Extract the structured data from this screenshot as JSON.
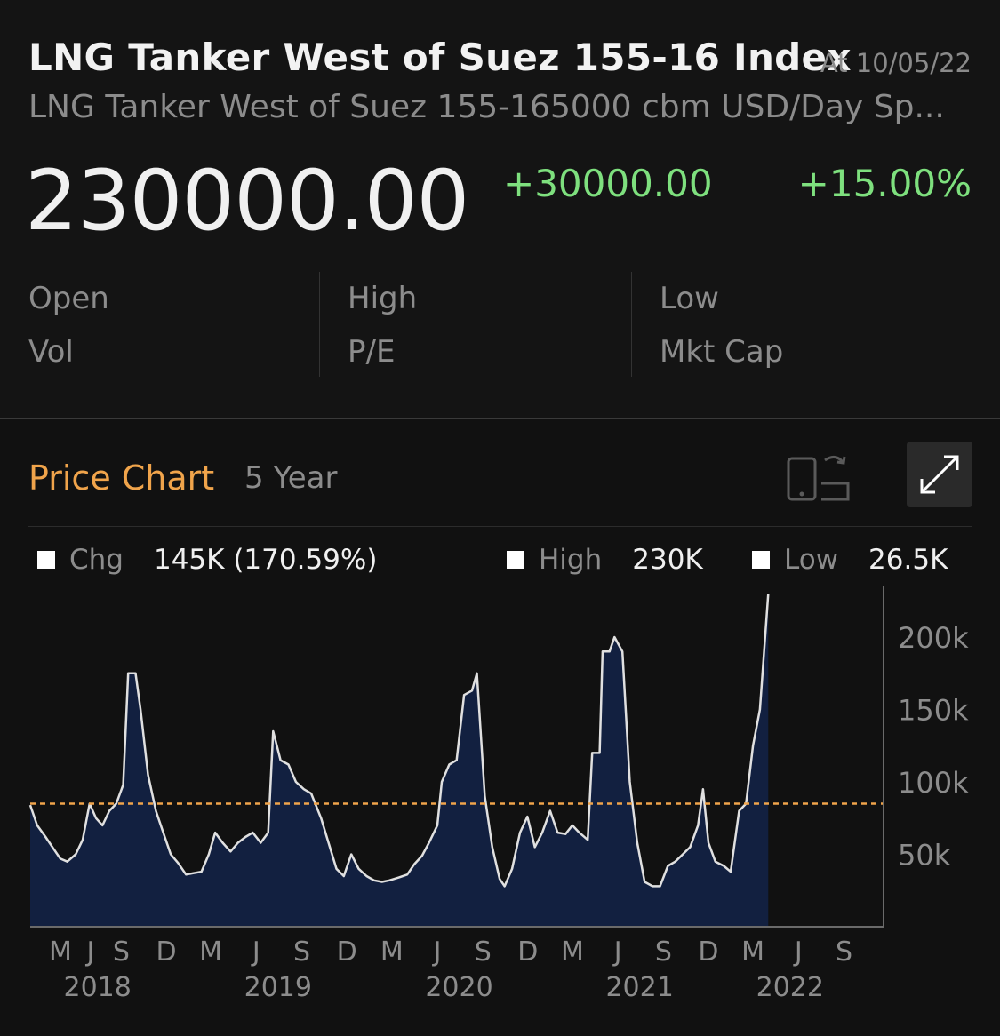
{
  "header": {
    "title": "LNG Tanker West of Suez 155-16 Index",
    "as_of": "At 10/05/22",
    "subtitle": "LNG Tanker West of Suez 155-165000 cbm USD/Day Sp...",
    "price": "230000.00",
    "change": "+30000.00",
    "change_pct": "+15.00%",
    "change_color": "#7ee07e"
  },
  "stats": {
    "open": "Open",
    "high": "High",
    "low": "Low",
    "vol": "Vol",
    "pe": "P/E",
    "mkt_cap": "Mkt Cap"
  },
  "price_chart": {
    "title": "Price Chart",
    "range": "5 Year",
    "title_color": "#f0a44b",
    "rotate_icon": "rotate-device-icon",
    "expand_icon": "expand-icon",
    "legend": {
      "chg_label": "Chg",
      "chg_value": "145K (170.59%)",
      "high_label": "High",
      "high_value": "230K",
      "low_label": "Low",
      "low_value": "26.5K"
    }
  },
  "chart_data": {
    "type": "area",
    "x_start": "2018-03-01",
    "x_end": "2022-10-05",
    "xlim": [
      "2018-03-01",
      "2022-11-20"
    ],
    "ylim": [
      0,
      235000
    ],
    "y_ticks": [
      50000,
      100000,
      150000,
      200000
    ],
    "y_tick_labels": [
      "50k",
      "100k",
      "150k",
      "200k"
    ],
    "reference_line": {
      "value": 85000,
      "style": "dashed",
      "color": "#f0a44b"
    },
    "fill_color": "#122040",
    "line_color": "#e0e0e0",
    "month_ticks": [
      {
        "label": "M",
        "date": "2018-05-01"
      },
      {
        "label": "J",
        "date": "2018-07-01"
      },
      {
        "label": "S",
        "date": "2018-09-01"
      },
      {
        "label": "D",
        "date": "2018-12-01"
      },
      {
        "label": "M",
        "date": "2019-03-01"
      },
      {
        "label": "J",
        "date": "2019-06-01"
      },
      {
        "label": "S",
        "date": "2019-09-01"
      },
      {
        "label": "D",
        "date": "2019-12-01"
      },
      {
        "label": "M",
        "date": "2020-03-01"
      },
      {
        "label": "J",
        "date": "2020-06-01"
      },
      {
        "label": "S",
        "date": "2020-09-01"
      },
      {
        "label": "D",
        "date": "2020-12-01"
      },
      {
        "label": "M",
        "date": "2021-03-01"
      },
      {
        "label": "J",
        "date": "2021-06-01"
      },
      {
        "label": "S",
        "date": "2021-09-01"
      },
      {
        "label": "D",
        "date": "2021-12-01"
      },
      {
        "label": "M",
        "date": "2022-03-01"
      },
      {
        "label": "J",
        "date": "2022-06-01"
      },
      {
        "label": "S",
        "date": "2022-09-01"
      }
    ],
    "year_labels": [
      {
        "label": "2018",
        "date": "2018-07-15"
      },
      {
        "label": "2019",
        "date": "2019-07-15"
      },
      {
        "label": "2020",
        "date": "2020-07-15"
      },
      {
        "label": "2021",
        "date": "2021-07-15"
      },
      {
        "label": "2022",
        "date": "2022-05-15"
      }
    ],
    "series": [
      {
        "points": [
          [
            "2018-03-01",
            84000
          ],
          [
            "2018-03-15",
            70000
          ],
          [
            "2018-04-01",
            62000
          ],
          [
            "2018-04-15",
            55000
          ],
          [
            "2018-05-01",
            47000
          ],
          [
            "2018-05-15",
            45000
          ],
          [
            "2018-06-01",
            50000
          ],
          [
            "2018-06-15",
            60000
          ],
          [
            "2018-06-29",
            85000
          ],
          [
            "2018-07-12",
            75000
          ],
          [
            "2018-07-25",
            70000
          ],
          [
            "2018-08-08",
            80000
          ],
          [
            "2018-08-22",
            85000
          ],
          [
            "2018-09-05",
            98000
          ],
          [
            "2018-09-15",
            175000
          ],
          [
            "2018-09-30",
            175000
          ],
          [
            "2018-10-10",
            150000
          ],
          [
            "2018-10-25",
            105000
          ],
          [
            "2018-11-10",
            80000
          ],
          [
            "2018-11-25",
            65000
          ],
          [
            "2018-12-10",
            50000
          ],
          [
            "2018-12-25",
            44000
          ],
          [
            "2019-01-10",
            36000
          ],
          [
            "2019-01-25",
            37000
          ],
          [
            "2019-02-10",
            38000
          ],
          [
            "2019-02-25",
            50000
          ],
          [
            "2019-03-10",
            65000
          ],
          [
            "2019-03-25",
            58000
          ],
          [
            "2019-04-10",
            52000
          ],
          [
            "2019-04-25",
            58000
          ],
          [
            "2019-05-10",
            62000
          ],
          [
            "2019-05-25",
            65000
          ],
          [
            "2019-06-10",
            58000
          ],
          [
            "2019-06-25",
            65000
          ],
          [
            "2019-07-05",
            135000
          ],
          [
            "2019-07-20",
            115000
          ],
          [
            "2019-08-05",
            112000
          ],
          [
            "2019-08-20",
            100000
          ],
          [
            "2019-09-05",
            95000
          ],
          [
            "2019-09-20",
            92000
          ],
          [
            "2019-10-10",
            75000
          ],
          [
            "2019-10-25",
            58000
          ],
          [
            "2019-11-10",
            40000
          ],
          [
            "2019-11-25",
            35000
          ],
          [
            "2019-12-10",
            50000
          ],
          [
            "2019-12-25",
            40000
          ],
          [
            "2020-01-10",
            35000
          ],
          [
            "2020-01-25",
            32000
          ],
          [
            "2020-02-10",
            31000
          ],
          [
            "2020-02-25",
            32000
          ],
          [
            "2020-03-15",
            34000
          ],
          [
            "2020-04-01",
            36000
          ],
          [
            "2020-04-15",
            43000
          ],
          [
            "2020-05-01",
            49000
          ],
          [
            "2020-05-15",
            58000
          ],
          [
            "2020-06-01",
            70000
          ],
          [
            "2020-06-10",
            100000
          ],
          [
            "2020-06-25",
            112000
          ],
          [
            "2020-07-10",
            115000
          ],
          [
            "2020-07-25",
            160000
          ],
          [
            "2020-08-10",
            163000
          ],
          [
            "2020-08-20",
            175000
          ],
          [
            "2020-09-05",
            90000
          ],
          [
            "2020-09-20",
            55000
          ],
          [
            "2020-10-05",
            33000
          ],
          [
            "2020-10-15",
            28000
          ],
          [
            "2020-10-30",
            40000
          ],
          [
            "2020-11-15",
            65000
          ],
          [
            "2020-11-30",
            76000
          ],
          [
            "2020-12-15",
            55000
          ],
          [
            "2020-12-30",
            65000
          ],
          [
            "2021-01-15",
            80000
          ],
          [
            "2021-01-30",
            65000
          ],
          [
            "2021-02-15",
            64000
          ],
          [
            "2021-03-01",
            70000
          ],
          [
            "2021-03-15",
            65000
          ],
          [
            "2021-04-01",
            60000
          ],
          [
            "2021-04-10",
            120000
          ],
          [
            "2021-04-25",
            120000
          ],
          [
            "2021-05-01",
            190000
          ],
          [
            "2021-05-15",
            190000
          ],
          [
            "2021-05-25",
            200000
          ],
          [
            "2021-06-10",
            190000
          ],
          [
            "2021-06-25",
            100000
          ],
          [
            "2021-07-10",
            58000
          ],
          [
            "2021-07-25",
            31000
          ],
          [
            "2021-08-10",
            28000
          ],
          [
            "2021-08-25",
            28000
          ],
          [
            "2021-09-10",
            42000
          ],
          [
            "2021-09-25",
            45000
          ],
          [
            "2021-10-10",
            50000
          ],
          [
            "2021-10-25",
            55000
          ],
          [
            "2021-11-10",
            70000
          ],
          [
            "2021-11-20",
            95000
          ],
          [
            "2021-12-01",
            58000
          ],
          [
            "2021-12-15",
            45000
          ],
          [
            "2022-01-01",
            42000
          ],
          [
            "2022-01-15",
            38000
          ],
          [
            "2022-02-01",
            80000
          ],
          [
            "2022-02-15",
            85000
          ],
          [
            "2022-03-01",
            125000
          ],
          [
            "2022-03-15",
            150000
          ],
          [
            "2022-04-01",
            230000
          ]
        ]
      }
    ]
  }
}
